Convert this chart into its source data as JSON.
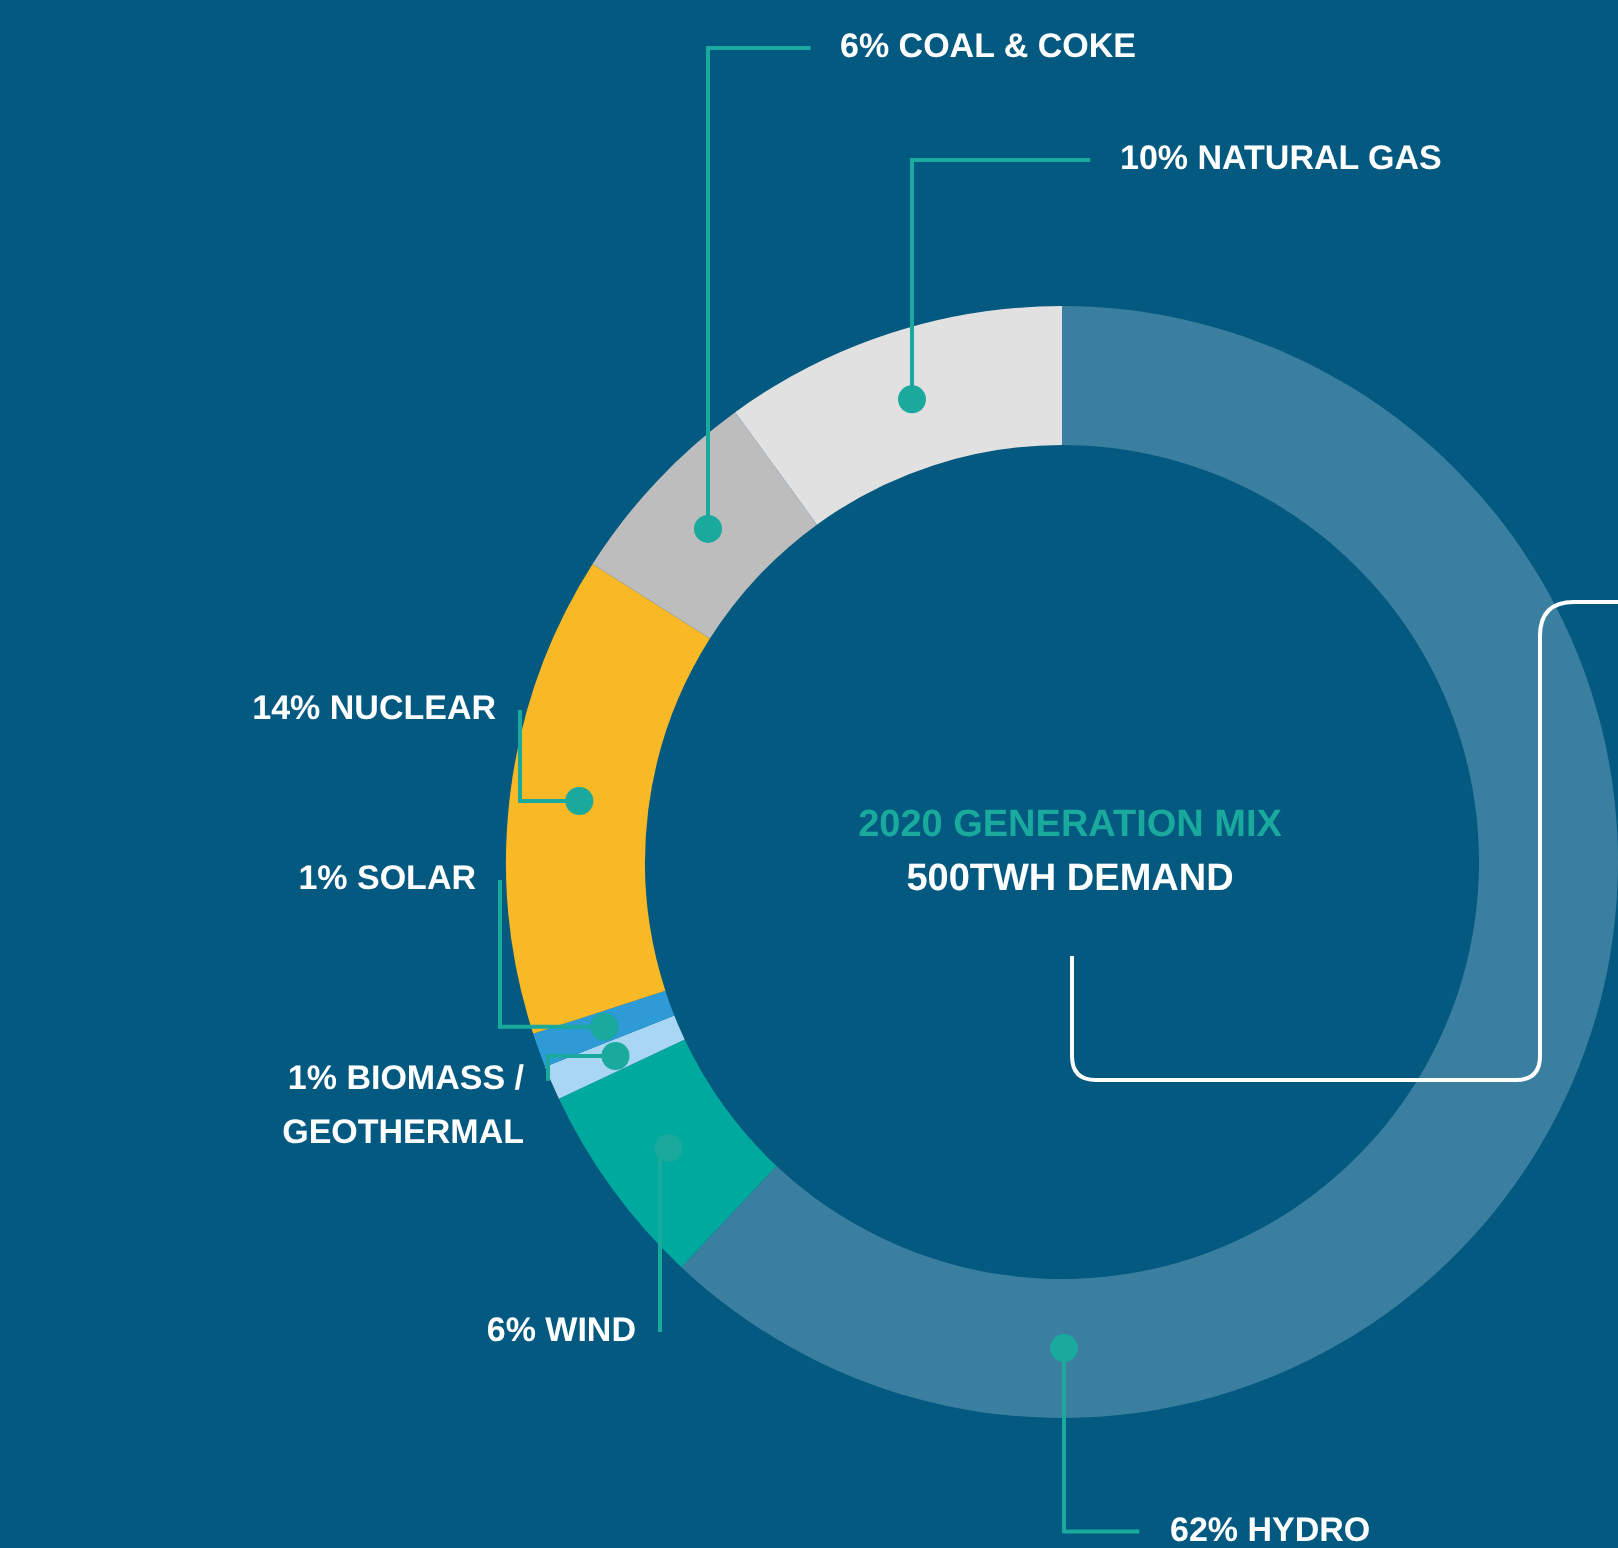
{
  "chart_data": {
    "type": "donut",
    "title": "2020 GENERATION MIX",
    "subtitle": "500TWH DEMAND",
    "categories": [
      "HYDRO",
      "WIND",
      "BIOMASS / GEOTHERMAL",
      "SOLAR",
      "NUCLEAR",
      "COAL & COKE",
      "NATURAL GAS"
    ],
    "values": [
      62,
      6,
      1,
      1,
      14,
      6,
      10
    ],
    "value_labels": [
      "62%",
      "6%",
      "1%",
      "1%",
      "14%",
      "6%",
      "10%"
    ],
    "colors": [
      "#3a7fa0",
      "#00a99d",
      "#a9d6f2",
      "#2e9ad6",
      "#f9b826",
      "#bdbdbe",
      "#e0e1e0"
    ],
    "legend": false
  }
}
